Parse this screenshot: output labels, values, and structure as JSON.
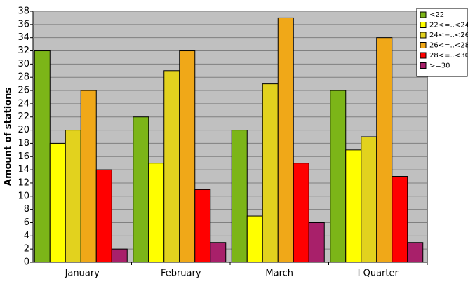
{
  "chart_data": {
    "type": "bar",
    "y_label": "Amount of stations",
    "categories": [
      "January",
      "February",
      "March",
      "I Quarter"
    ],
    "series": [
      {
        "name": "<22",
        "color": "#7cb518",
        "values": [
          32,
          22,
          20,
          26
        ]
      },
      {
        "name": "22<=..<24",
        "color": "#ffff00",
        "values": [
          18,
          15,
          7,
          17
        ]
      },
      {
        "name": "24<=..<26",
        "color": "#e2d21e",
        "values": [
          20,
          29,
          27,
          19
        ]
      },
      {
        "name": "26<=..<28",
        "color": "#f0a818",
        "values": [
          26,
          32,
          37,
          34
        ]
      },
      {
        "name": "28<=..<30",
        "color": "#ff0000",
        "values": [
          14,
          11,
          15,
          13
        ]
      },
      {
        "name": ">=30",
        "color": "#a8206a",
        "values": [
          2,
          3,
          6,
          3
        ]
      }
    ],
    "ylim": [
      0,
      38
    ],
    "yticks": [
      0,
      2,
      4,
      6,
      8,
      10,
      12,
      14,
      16,
      18,
      20,
      22,
      24,
      26,
      28,
      30,
      32,
      34,
      36,
      38
    ],
    "grid": true,
    "legend": "top-right"
  }
}
